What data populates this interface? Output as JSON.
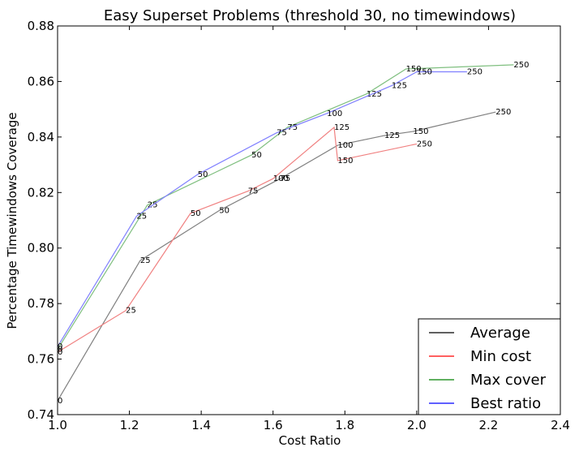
{
  "chart_data": {
    "type": "line",
    "title": "Easy Superset Problems (threshold 30, no timewindows)",
    "xlabel": "Cost Ratio",
    "ylabel": "Percentage Timewindows Coverage",
    "xlim": [
      1.0,
      2.4
    ],
    "ylim": [
      0.74,
      0.88
    ],
    "xticks": [
      "1.0",
      "1.2",
      "1.4",
      "1.6",
      "1.8",
      "2.0",
      "2.2",
      "2.4"
    ],
    "yticks": [
      "0.74",
      "0.76",
      "0.78",
      "0.80",
      "0.82",
      "0.84",
      "0.86",
      "0.88"
    ],
    "grid": false,
    "legend_position": "lower-right",
    "series": [
      {
        "name": "Average",
        "color": "#808080",
        "legend_color": "#000000",
        "points": [
          {
            "x": 1.0,
            "y": 0.745,
            "label": "0"
          },
          {
            "x": 1.23,
            "y": 0.7955,
            "label": "25"
          },
          {
            "x": 1.45,
            "y": 0.8135,
            "label": "50"
          },
          {
            "x": 1.62,
            "y": 0.825,
            "label": "75"
          },
          {
            "x": 1.78,
            "y": 0.837,
            "label": "100"
          },
          {
            "x": 1.91,
            "y": 0.8405,
            "label": "125"
          },
          {
            "x": 1.99,
            "y": 0.842,
            "label": "150"
          },
          {
            "x": 2.22,
            "y": 0.849,
            "label": "250"
          }
        ]
      },
      {
        "name": "Min cost",
        "color": "#f08080",
        "legend_color": "#ff0000",
        "points": [
          {
            "x": 1.0,
            "y": 0.7625,
            "label": "0"
          },
          {
            "x": 1.19,
            "y": 0.7775,
            "label": "25"
          },
          {
            "x": 1.37,
            "y": 0.8125,
            "label": "50"
          },
          {
            "x": 1.53,
            "y": 0.8205,
            "label": "75"
          },
          {
            "x": 1.6,
            "y": 0.825,
            "label": "100"
          },
          {
            "x": 1.77,
            "y": 0.8435,
            "label": "125"
          },
          {
            "x": 1.78,
            "y": 0.8315,
            "label": "150"
          },
          {
            "x": 2.0,
            "y": 0.8375,
            "label": "250"
          }
        ]
      },
      {
        "name": "Max cover",
        "color": "#7fbf7f",
        "legend_color": "#008000",
        "points": [
          {
            "x": 1.0,
            "y": 0.7635,
            "label": "0"
          },
          {
            "x": 1.25,
            "y": 0.8155,
            "label": "25"
          },
          {
            "x": 1.54,
            "y": 0.8335,
            "label": "50"
          },
          {
            "x": 1.64,
            "y": 0.8435,
            "label": "75"
          },
          {
            "x": 1.86,
            "y": 0.8555,
            "label": "125"
          },
          {
            "x": 1.97,
            "y": 0.8645,
            "label": "150"
          },
          {
            "x": 2.27,
            "y": 0.866,
            "label": "250"
          }
        ]
      },
      {
        "name": "Best ratio",
        "color": "#7f7fff",
        "legend_color": "#0000ff",
        "points": [
          {
            "x": 1.0,
            "y": 0.7645,
            "label": "0"
          },
          {
            "x": 1.22,
            "y": 0.8115,
            "label": "25"
          },
          {
            "x": 1.39,
            "y": 0.8265,
            "label": "50"
          },
          {
            "x": 1.61,
            "y": 0.8415,
            "label": "75"
          },
          {
            "x": 1.75,
            "y": 0.8485,
            "label": "100"
          },
          {
            "x": 1.93,
            "y": 0.8585,
            "label": "125"
          },
          {
            "x": 2.0,
            "y": 0.8635,
            "label": "150"
          },
          {
            "x": 2.14,
            "y": 0.8635,
            "label": "250"
          }
        ]
      }
    ]
  }
}
